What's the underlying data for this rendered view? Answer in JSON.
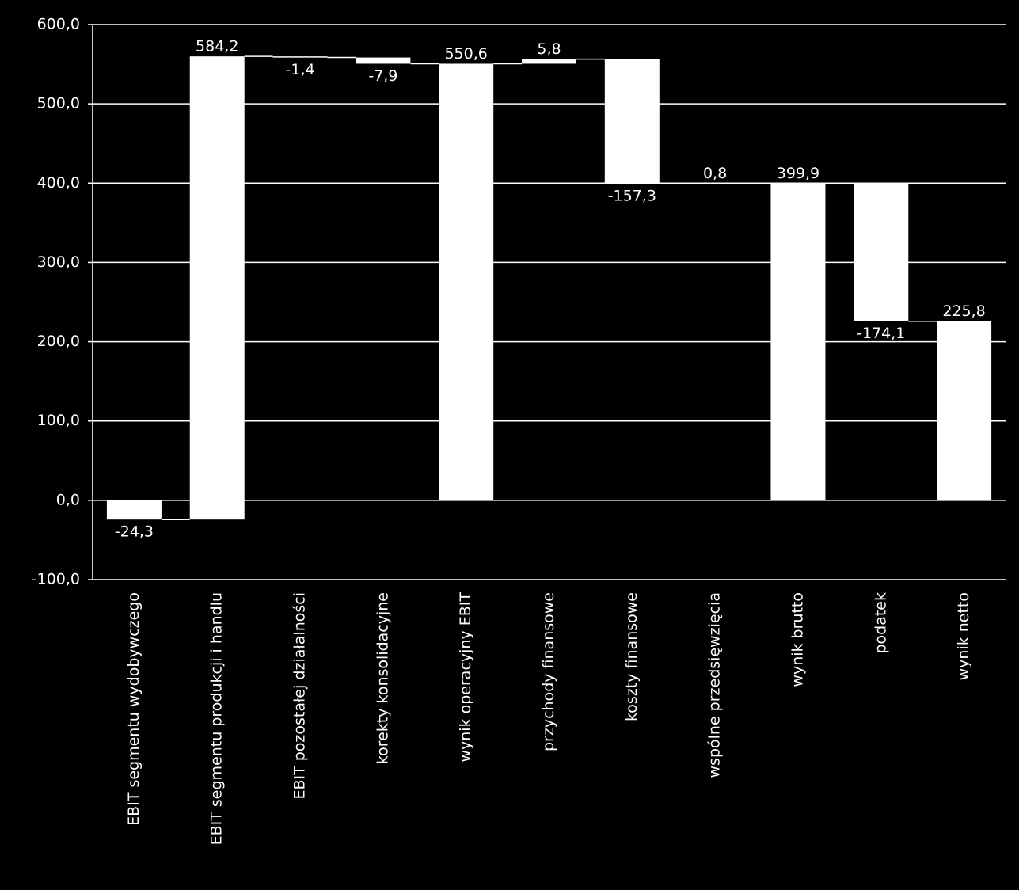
{
  "chart_data": {
    "type": "waterfall",
    "categories": [
      "EBIT segmentu wydobywczego",
      "EBIT segmentu produkcji i handlu",
      "EBIT pozostałej działalności",
      "korekty konsolidacyjne",
      "wynik operacyjny EBIT",
      "przychody finansowe",
      "koszty finansowe",
      "wspólne przedsięwzięcia",
      "wynik brutto",
      "podatek",
      "wynik netto"
    ],
    "values": [
      -24.3,
      584.2,
      -1.4,
      -7.9,
      550.6,
      5.8,
      -157.3,
      0.8,
      399.9,
      -174.1,
      225.8
    ],
    "value_labels": [
      "-24,3",
      "584,2",
      "-1,4",
      "-7,9",
      "550,6",
      "5,8",
      "-157,3",
      "0,8",
      "399,9",
      "-174,1",
      "225,8"
    ],
    "totals": [
      false,
      false,
      false,
      false,
      true,
      false,
      false,
      false,
      true,
      false,
      true
    ],
    "color": "#ffffff",
    "ylim": [
      -100,
      600
    ],
    "yticks": [
      {
        "value": -100,
        "label": "-100,0"
      },
      {
        "value": 0,
        "label": "0,0"
      },
      {
        "value": 100,
        "label": "100,0"
      },
      {
        "value": 200,
        "label": "200,0"
      },
      {
        "value": 300,
        "label": "300,0"
      },
      {
        "value": 400,
        "label": "400,0"
      },
      {
        "value": 500,
        "label": "500,0"
      },
      {
        "value": 600,
        "label": "600,0"
      }
    ],
    "grid": true
  }
}
